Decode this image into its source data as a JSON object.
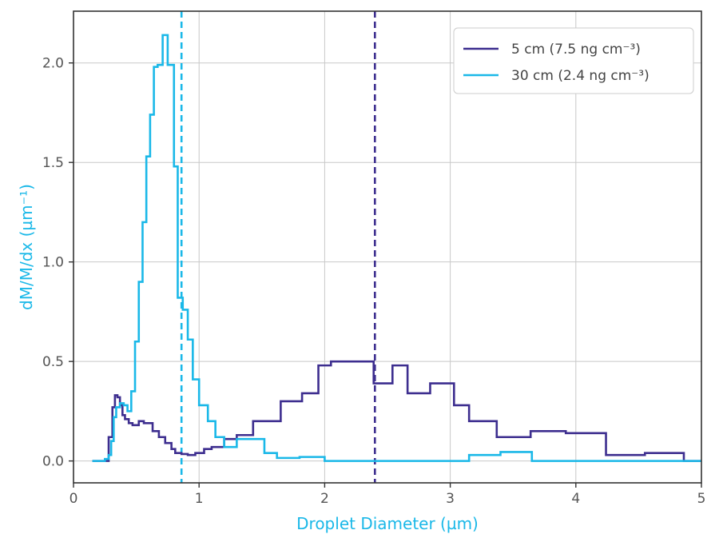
{
  "chart_data": {
    "type": "line",
    "xlabel": "Droplet Diameter (µm)",
    "ylabel": "dM/M/dx (µm⁻¹)",
    "xlim": [
      0,
      5
    ],
    "ylim": [
      -0.11,
      2.26
    ],
    "xticks": [
      "0",
      "1",
      "2",
      "3",
      "4",
      "5"
    ],
    "yticks": [
      "0.0",
      "0.5",
      "1.0",
      "1.5",
      "2.0"
    ],
    "grid": true,
    "legend_position": "top-right",
    "label_color": "#1ab8e8",
    "series": [
      {
        "name": "5 cm (7.5 ng cm⁻³)",
        "color": "#3d2e8f",
        "step": true,
        "x": [
          0.15,
          0.28,
          0.31,
          0.33,
          0.35,
          0.37,
          0.39,
          0.41,
          0.44,
          0.47,
          0.52,
          0.56,
          0.63,
          0.68,
          0.73,
          0.78,
          0.81,
          0.86,
          0.91,
          0.97,
          1.04,
          1.1,
          1.2,
          1.3,
          1.43,
          1.65,
          1.82,
          1.95,
          2.05,
          2.2,
          2.39,
          2.54,
          2.66,
          2.84,
          3.03,
          3.15,
          3.37,
          3.64,
          3.92,
          4.24,
          4.55,
          4.86,
          5.0
        ],
        "y": [
          0.0,
          0.12,
          0.27,
          0.33,
          0.32,
          0.28,
          0.23,
          0.21,
          0.19,
          0.18,
          0.2,
          0.19,
          0.15,
          0.12,
          0.09,
          0.06,
          0.04,
          0.035,
          0.03,
          0.04,
          0.06,
          0.07,
          0.11,
          0.13,
          0.2,
          0.3,
          0.34,
          0.48,
          0.5,
          0.5,
          0.39,
          0.48,
          0.34,
          0.39,
          0.28,
          0.2,
          0.12,
          0.15,
          0.14,
          0.03,
          0.04,
          0.0,
          0.0
        ]
      },
      {
        "name": "30 cm (2.4 ng cm⁻³)",
        "color": "#1ab8e8",
        "step": true,
        "x": [
          0.15,
          0.25,
          0.28,
          0.3,
          0.32,
          0.34,
          0.37,
          0.4,
          0.43,
          0.46,
          0.49,
          0.52,
          0.55,
          0.58,
          0.61,
          0.64,
          0.67,
          0.71,
          0.75,
          0.8,
          0.83,
          0.87,
          0.91,
          0.95,
          1.0,
          1.07,
          1.13,
          1.2,
          1.3,
          1.4,
          1.52,
          1.62,
          1.8,
          2.0,
          2.15,
          3.15,
          3.4,
          3.65,
          5.0
        ],
        "y": [
          0.0,
          0.01,
          0.03,
          0.1,
          0.22,
          0.27,
          0.29,
          0.28,
          0.25,
          0.35,
          0.6,
          0.9,
          1.2,
          1.53,
          1.74,
          1.98,
          1.99,
          2.14,
          1.99,
          1.48,
          0.82,
          0.76,
          0.61,
          0.41,
          0.28,
          0.2,
          0.12,
          0.07,
          0.11,
          0.11,
          0.04,
          0.015,
          0.02,
          0.0,
          0.0,
          0.03,
          0.045,
          0.0,
          0.0
        ]
      }
    ],
    "vlines": [
      {
        "x": 0.86,
        "color": "#1ab8e8",
        "style": "dashed"
      },
      {
        "x": 2.4,
        "color": "#3d2e8f",
        "style": "dashed"
      }
    ]
  }
}
